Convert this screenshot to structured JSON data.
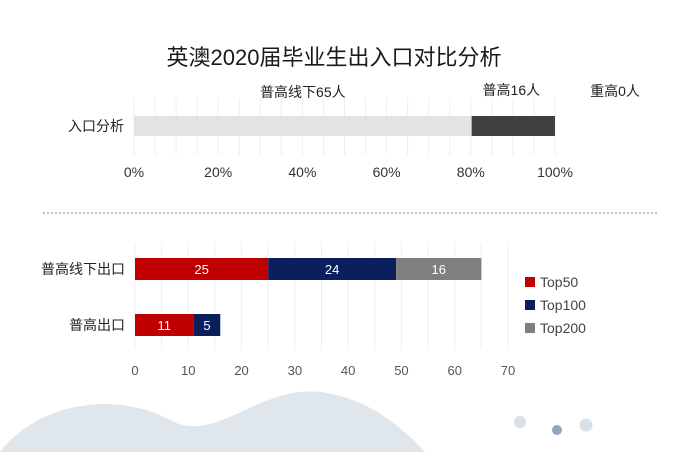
{
  "title": "英澳2020届毕业生出入口对比分析",
  "colors": {
    "top50": "#c00000",
    "top100": "#0b1f5c",
    "top200": "#7f7f7f",
    "share_light": "#e3e3e3",
    "share_dark": "#404040",
    "decor_wave": "#dfe6ec"
  },
  "chart_data": [
    {
      "type": "bar",
      "orientation": "horizontal",
      "stacked": true,
      "percent": true,
      "categories": [
        "入口分析"
      ],
      "series": [
        {
          "values": [
            80.2
          ]
        },
        {
          "values": [
            19.8
          ]
        },
        {
          "values": [
            0
          ]
        }
      ],
      "xlim": [
        0,
        100
      ],
      "xticks": [
        "0%",
        "20%",
        "40%",
        "60%",
        "80%",
        "100%"
      ],
      "annotations": [
        "普高线下65人",
        "普高16人",
        "重高0人"
      ],
      "grid": true
    },
    {
      "type": "bar",
      "orientation": "horizontal",
      "stacked": true,
      "categories": [
        "普高线下出口",
        "普高出口"
      ],
      "series": [
        {
          "name": "Top50",
          "values": [
            25,
            11
          ]
        },
        {
          "name": "Top100",
          "values": [
            24,
            5
          ]
        },
        {
          "name": "Top200",
          "values": [
            16,
            0
          ]
        }
      ],
      "xlim": [
        0,
        70
      ],
      "xticks": [
        "0",
        "10",
        "20",
        "30",
        "40",
        "50",
        "60",
        "70"
      ],
      "legend": "right",
      "grid": true
    }
  ]
}
